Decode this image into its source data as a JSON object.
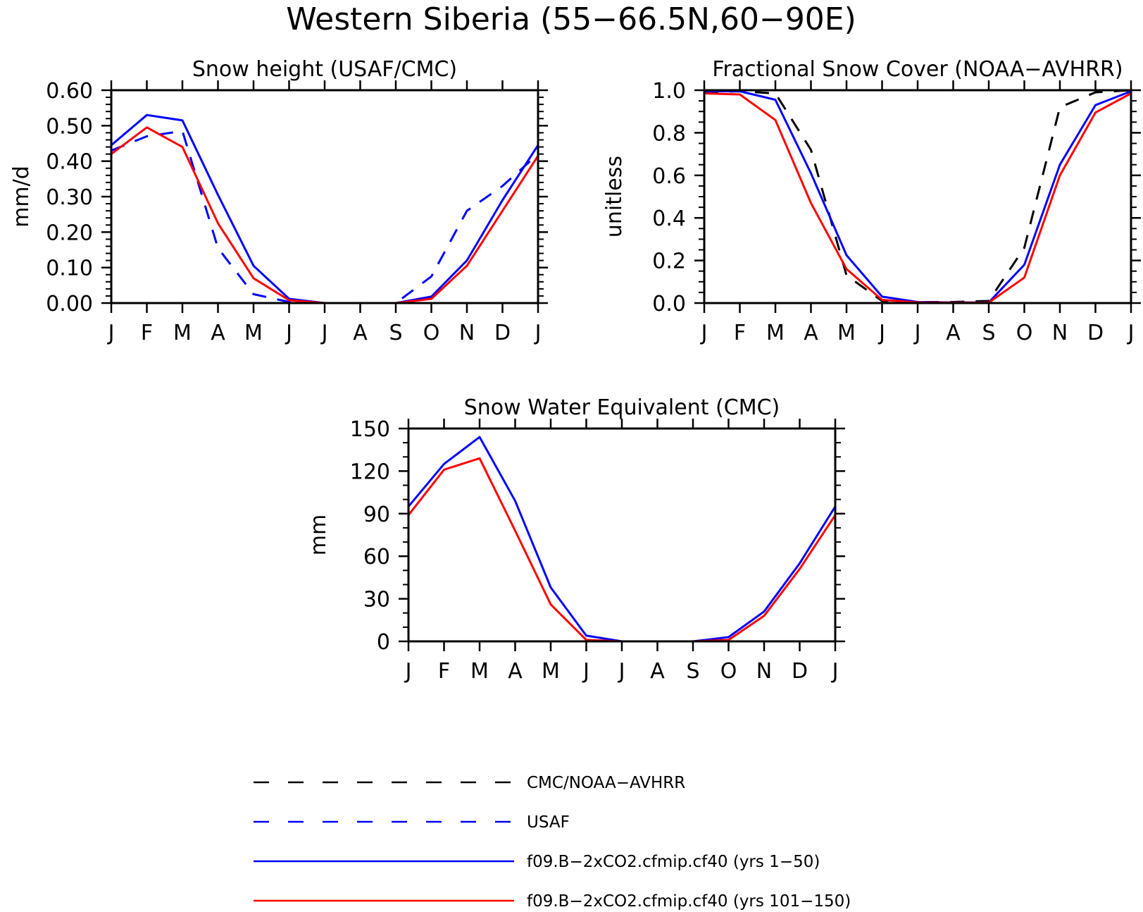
{
  "figure": {
    "title": "Western Siberia (55−66.5N,60−90E)"
  },
  "styles": {
    "obs": {
      "color": "#000000",
      "dash": "dashed"
    },
    "usaf": {
      "color": "#0000ff",
      "dash": "dashed"
    },
    "run1": {
      "color": "#0000ff",
      "dash": "solid"
    },
    "run2": {
      "color": "#ff0000",
      "dash": "solid"
    }
  },
  "legend": {
    "position": "bottom",
    "entries": [
      {
        "key": "obs",
        "label": "CMC/NOAA−AVHRR"
      },
      {
        "key": "usaf",
        "label": "USAF"
      },
      {
        "key": "run1",
        "label": "f09.B−2xCO2.cfmip.cf40 (yrs 1−50)"
      },
      {
        "key": "run2",
        "label": "f09.B−2xCO2.cfmip.cf40 (yrs 101−150)"
      }
    ]
  },
  "chart_data": [
    {
      "type": "line",
      "title": "Snow height (USAF/CMC)",
      "ylabel": "mm/d",
      "xlabel": "",
      "categories": [
        "J",
        "F",
        "M",
        "A",
        "M",
        "J",
        "J",
        "A",
        "S",
        "O",
        "N",
        "D",
        "J"
      ],
      "ylim": [
        0,
        0.6
      ],
      "yticks": [
        "0.00",
        "0.10",
        "0.20",
        "0.30",
        "0.40",
        "0.50",
        "0.60"
      ],
      "series": [
        {
          "style": "usaf",
          "values": [
            0.43,
            0.47,
            0.485,
            0.155,
            0.025,
            0.003,
            0,
            0,
            0,
            0.075,
            0.26,
            0.33,
            0.42
          ]
        },
        {
          "style": "run1",
          "values": [
            0.445,
            0.53,
            0.515,
            0.305,
            0.105,
            0.012,
            0,
            0,
            0,
            0.018,
            0.12,
            0.29,
            0.445
          ]
        },
        {
          "style": "run2",
          "values": [
            0.42,
            0.495,
            0.44,
            0.225,
            0.07,
            0.008,
            0,
            0,
            0,
            0.012,
            0.105,
            0.26,
            0.415
          ]
        }
      ]
    },
    {
      "type": "line",
      "title": "Fractional Snow Cover (NOAA−AVHRR)",
      "ylabel": "unitless",
      "xlabel": "",
      "categories": [
        "J",
        "F",
        "M",
        "A",
        "M",
        "J",
        "J",
        "A",
        "S",
        "O",
        "N",
        "D",
        "J"
      ],
      "ylim": [
        0,
        1.0
      ],
      "yticks": [
        "0.0",
        "0.2",
        "0.4",
        "0.6",
        "0.8",
        "1.0"
      ],
      "series": [
        {
          "style": "obs",
          "values": [
            0.99,
            0.995,
            0.985,
            0.72,
            0.13,
            0.01,
            0.005,
            0.005,
            0.01,
            0.26,
            0.92,
            0.99,
            1.0
          ]
        },
        {
          "style": "run1",
          "values": [
            0.995,
            0.995,
            0.955,
            0.61,
            0.225,
            0.03,
            0.005,
            0.003,
            0.003,
            0.18,
            0.65,
            0.93,
            0.995
          ]
        },
        {
          "style": "run2",
          "values": [
            0.985,
            0.98,
            0.86,
            0.47,
            0.16,
            0.015,
            0.003,
            0.002,
            0.002,
            0.12,
            0.6,
            0.895,
            0.985
          ]
        }
      ]
    },
    {
      "type": "line",
      "title": "Snow Water Equivalent (CMC)",
      "ylabel": "mm",
      "xlabel": "",
      "categories": [
        "J",
        "F",
        "M",
        "A",
        "M",
        "J",
        "J",
        "A",
        "S",
        "O",
        "N",
        "D",
        "J"
      ],
      "ylim": [
        0,
        150
      ],
      "yticks": [
        "0",
        "30",
        "60",
        "90",
        "120",
        "150"
      ],
      "series": [
        {
          "style": "run1",
          "values": [
            95,
            125,
            144,
            99,
            38,
            4,
            0,
            0,
            0,
            3,
            21,
            55,
            95
          ]
        },
        {
          "style": "run2",
          "values": [
            89,
            121,
            129,
            78,
            26,
            1,
            0,
            0,
            0,
            1,
            18,
            51,
            89
          ]
        }
      ]
    }
  ]
}
